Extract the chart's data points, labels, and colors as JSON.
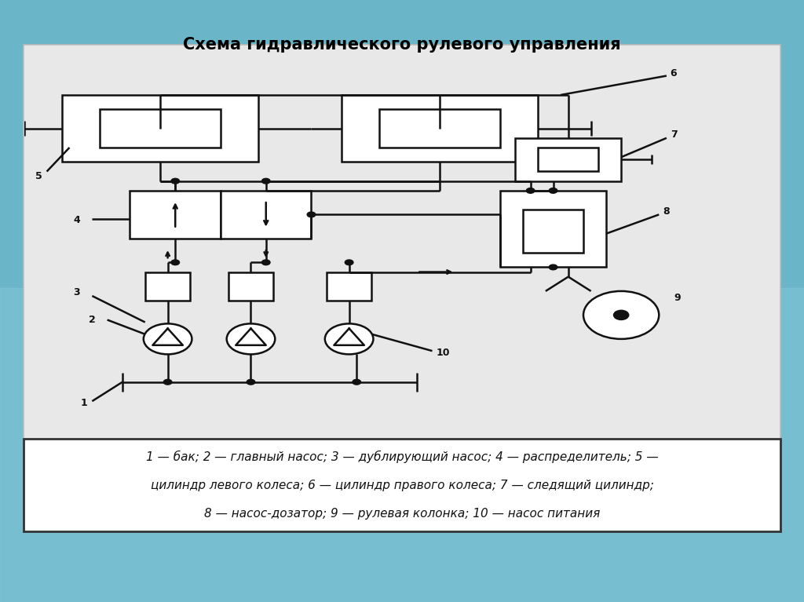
{
  "title": "Схема гидравлического рулевого управления",
  "title_fontsize": 15,
  "legend_line1": "1 — бак; 2 — главный насос; 3 — дублирующий насос; 4 — распределитель; 5 —",
  "legend_line2": "цилиндр левого колеса; 6 — цилиндр правого колеса; 7 — следящий цилиндр;",
  "legend_line3": "8 — насос-дозатор; 9 — рулевая колонка; 10 — насос питания",
  "lc": "#111111",
  "lw": 1.8
}
